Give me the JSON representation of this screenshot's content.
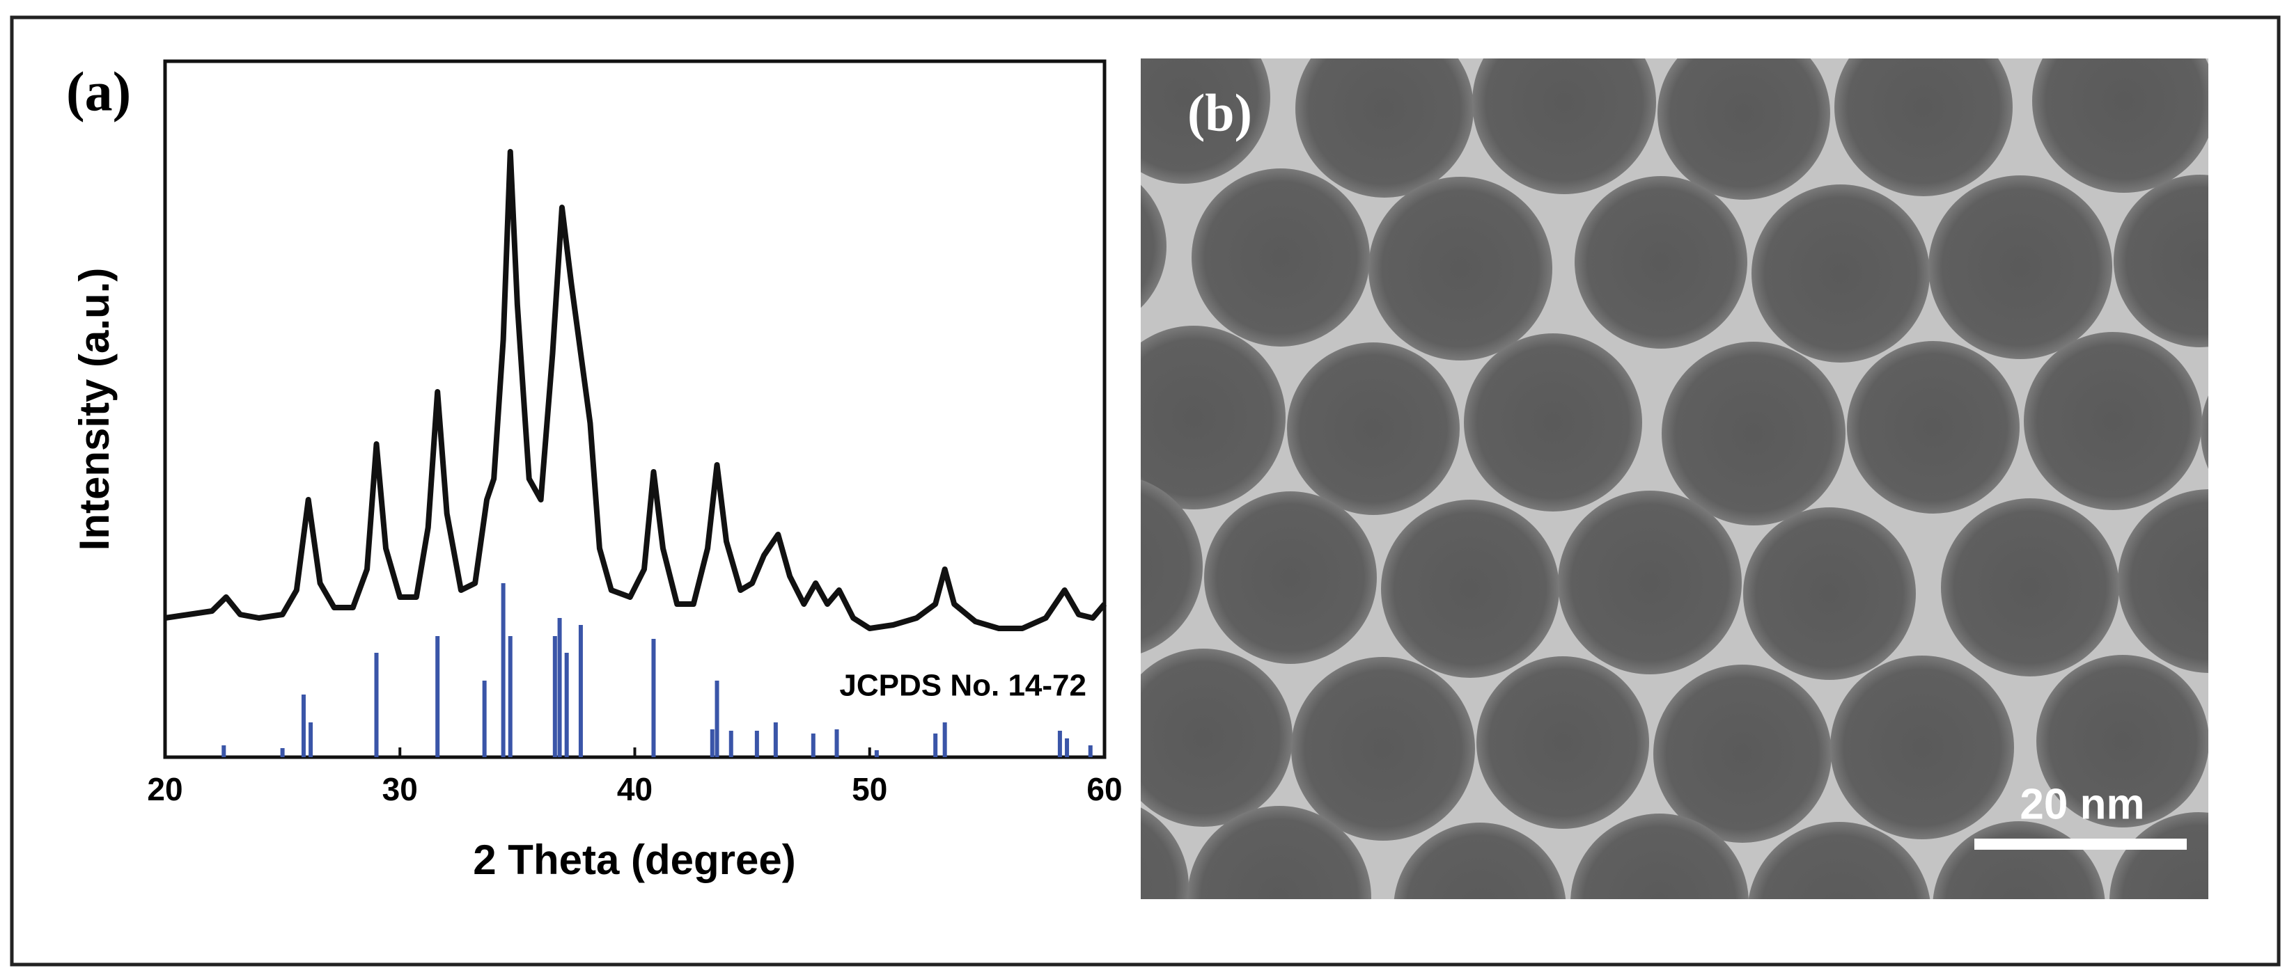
{
  "chart_data": [
    {
      "type": "line",
      "title": "(a)",
      "xlabel": "2 Theta (degree)",
      "ylabel": "Intensity (a.u.)",
      "color": "#111111",
      "x": [
        20,
        21,
        22,
        22.6,
        23.2,
        24,
        25,
        25.6,
        26.1,
        26.6,
        27.2,
        28,
        28.6,
        29.0,
        29.4,
        30,
        30.7,
        31.2,
        31.6,
        32.0,
        32.6,
        33.2,
        33.7,
        34.0,
        34.4,
        34.7,
        35.0,
        35.5,
        36.0,
        36.5,
        36.9,
        37.3,
        37.7,
        38.1,
        38.5,
        39.0,
        39.8,
        40.4,
        40.8,
        41.2,
        41.8,
        42.5,
        43.1,
        43.5,
        43.9,
        44.5,
        45,
        45.5,
        46.1,
        46.6,
        47.2,
        47.7,
        48.2,
        48.7,
        49.3,
        50,
        51,
        52,
        52.8,
        53.2,
        53.6,
        54.5,
        55.5,
        56.5,
        57.5,
        58.3,
        58.9,
        59.5,
        60
      ],
      "values": [
        20,
        20.5,
        21,
        23,
        20.5,
        20,
        20.5,
        24,
        37,
        25,
        21.5,
        21.5,
        27,
        45,
        30,
        23,
        23,
        33,
        52.5,
        35,
        24,
        25,
        37,
        40,
        60,
        87,
        65,
        40,
        37,
        58,
        79,
        68,
        58,
        48,
        30,
        24,
        23,
        27,
        41,
        30,
        22,
        22,
        30,
        42,
        31,
        24,
        25,
        29,
        32,
        26,
        22,
        25,
        22,
        24,
        20,
        18.5,
        19,
        20,
        22,
        27,
        22,
        19.5,
        18.5,
        18.5,
        20,
        24,
        20.5,
        20,
        22
      ],
      "xlim": [
        20,
        60
      ],
      "ylim": [
        0,
        100
      ],
      "xticks": [
        20,
        30,
        40,
        50,
        60
      ]
    },
    {
      "type": "bar",
      "annotation": "JCPDS No. 14-72",
      "color": "#3a55a8",
      "x": [
        22.5,
        25,
        25.9,
        26.2,
        29.0,
        31.6,
        33.6,
        34.4,
        34.7,
        36.6,
        36.8,
        37.1,
        37.7,
        40.8,
        43.3,
        43.5,
        44.1,
        45.2,
        46.0,
        47.6,
        48.6,
        50.3,
        52.8,
        53.2,
        58.1,
        58.4,
        59.4
      ],
      "values": [
        1.7,
        1.3,
        9,
        5,
        15,
        17.4,
        11,
        25,
        17.4,
        17.4,
        20,
        15,
        19,
        17,
        4,
        11,
        3.8,
        3.8,
        5,
        3.4,
        4,
        1,
        3.4,
        5,
        3.8,
        2.7,
        1.7
      ],
      "xlim": [
        20,
        60
      ],
      "ylim": [
        0,
        100
      ]
    }
  ],
  "panel_b": {
    "label": "(b)",
    "scale_bar": "20 nm"
  }
}
